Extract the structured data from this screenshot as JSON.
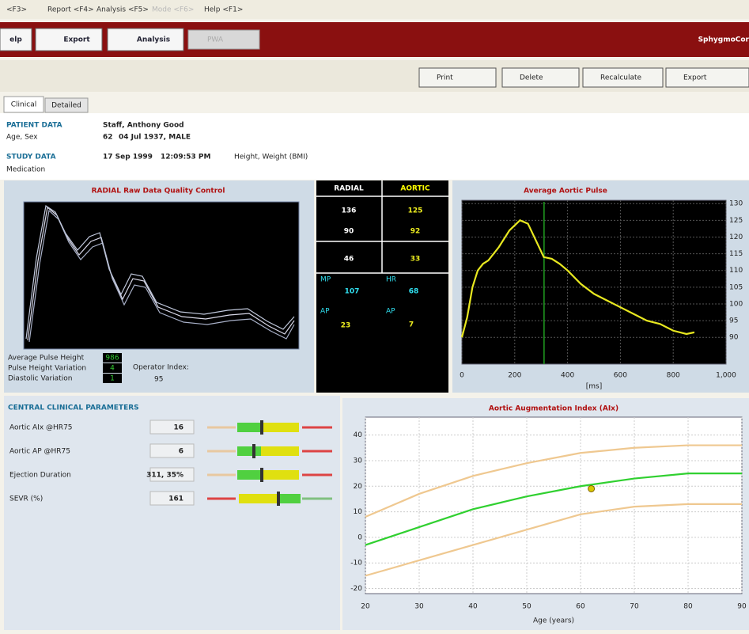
{
  "menu": [
    "<F3>",
    "Report <F4>",
    "Analysis <F5>",
    "Mode <F6>",
    "Help <F1>"
  ],
  "toolbar": {
    "buttons": [
      "elp",
      "Export",
      "Analysis"
    ],
    "mode": "PWA",
    "brand": "SphygmoCor"
  },
  "actions": [
    "Print",
    "Delete",
    "Recalculate",
    "Export"
  ],
  "tabs": [
    "Clinical",
    "Detailed"
  ],
  "patient": {
    "heading": "PATIENT DATA",
    "name": "Staff, Anthony Good",
    "age_sex_label": "Age, Sex",
    "age": 62,
    "dob_sex": "04 Jul 1937, MALE"
  },
  "study": {
    "heading": "STUDY DATA",
    "date": "17 Sep 1999",
    "time": "12:09:53 PM",
    "hw_label": "Height, Weight (BMI)",
    "medication_label": "Medication"
  },
  "quality": {
    "title": "RADIAL Raw Data Quality Control",
    "rows": [
      {
        "label": "Average Pulse Height",
        "value": 986
      },
      {
        "label": "Pulse Height Variation",
        "value": 4
      },
      {
        "label": "Diastolic Variation",
        "value": 1
      }
    ],
    "operator_label": "Operator Index:",
    "operator_value": 95
  },
  "pressures": {
    "headers": [
      "RADIAL",
      "AORTIC"
    ],
    "rows": [
      [
        136,
        125
      ],
      [
        90,
        92
      ],
      [
        46,
        33
      ]
    ],
    "extra": [
      {
        "label": "MP",
        "value": 107
      },
      {
        "label": "HR",
        "value": 68
      },
      {
        "label": "AP",
        "value": 23
      },
      {
        "label": "AP",
        "value": 7
      }
    ]
  },
  "parameters": {
    "title": "CENTRAL CLINICAL PARAMETERS",
    "rows": [
      {
        "label": "Aortic AIx @HR75",
        "value": "16"
      },
      {
        "label": "Aortic AP @HR75",
        "value": "6"
      },
      {
        "label": "Ejection Duration",
        "value": "311, 35%"
      },
      {
        "label": "SEVR (%)",
        "value": "161"
      }
    ]
  },
  "chart_data": [
    {
      "type": "line",
      "title": "Average Aortic Pulse",
      "x_label": "[ms]",
      "x": [
        0,
        20,
        40,
        60,
        80,
        100,
        140,
        180,
        220,
        250,
        280,
        310,
        340,
        370,
        400,
        450,
        500,
        550,
        600,
        650,
        700,
        750,
        800,
        850,
        880
      ],
      "series": [
        {
          "color": "#e8e820",
          "values": [
            90,
            96,
            105,
            110,
            112,
            113,
            117,
            122,
            125,
            124,
            119,
            114,
            113.5,
            112,
            110,
            106,
            103,
            101,
            99,
            97,
            95,
            94,
            92,
            91,
            91.5
          ]
        }
      ],
      "marker_x": 311,
      "marker_color": "#20a020",
      "xlim": [
        0,
        1000
      ],
      "ylim": [
        82,
        131
      ],
      "xticks": [
        0,
        200,
        400,
        600,
        800,
        {
          "value": 1000,
          "label": "1,000"
        }
      ],
      "yticks": [
        90,
        95,
        100,
        105,
        110,
        115,
        120,
        125,
        130
      ],
      "grid": true
    },
    {
      "type": "line",
      "title": "Aortic Augmentation Index (AIx)",
      "x_label": "Age (years)",
      "x": [
        20,
        30,
        40,
        50,
        60,
        70,
        80,
        90
      ],
      "series": [
        {
          "color": "#efc890",
          "values": [
            8,
            17,
            24,
            29,
            33,
            35,
            36,
            36
          ]
        },
        {
          "color": "#30d030",
          "values": [
            -3,
            4,
            11,
            16,
            20,
            23,
            25,
            25
          ]
        },
        {
          "color": "#efc890",
          "values": [
            -15,
            -9,
            -3,
            3,
            9,
            12,
            13,
            13
          ]
        }
      ],
      "point": {
        "x": 62,
        "y": 19,
        "color": "#d8c800"
      },
      "xlim": [
        20,
        90
      ],
      "ylim": [
        -22,
        47
      ],
      "xticks": [
        20,
        30,
        40,
        50,
        60,
        70,
        80,
        90
      ],
      "yticks": [
        -20,
        -10,
        0,
        10,
        20,
        30,
        40
      ],
      "grid": true
    }
  ]
}
